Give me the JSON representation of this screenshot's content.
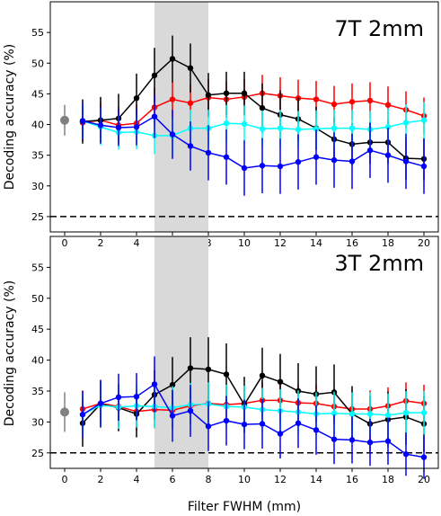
{
  "figure": {
    "xlabel": "Filter FWHM (mm)",
    "ylabel": "Decoding accuracy (%)"
  },
  "chart_data": [
    {
      "type": "line",
      "title": "7T 2mm",
      "xlabel": "Filter FWHM (mm)",
      "ylabel": "Decoding accuracy (%)",
      "xlim": [
        -0.8,
        20.8
      ],
      "ylim": [
        22.5,
        60
      ],
      "xticks": [
        0,
        2,
        4,
        6,
        8,
        10,
        12,
        14,
        16,
        18,
        20
      ],
      "yticks": [
        25,
        30,
        35,
        40,
        45,
        50,
        55
      ],
      "chance_level": 25,
      "highlight_x": [
        5,
        8
      ],
      "baseline": {
        "x": 0,
        "y": 40.7,
        "err": 2.5,
        "color": "#808080"
      },
      "x": [
        1,
        2,
        3,
        4,
        5,
        6,
        7,
        8,
        9,
        10,
        11,
        12,
        13,
        14,
        15,
        16,
        17,
        18,
        19,
        20
      ],
      "series": [
        {
          "color": "#ff0000",
          "values": [
            40.3,
            40.7,
            39.9,
            40.2,
            42.8,
            44.1,
            43.5,
            44.4,
            44.1,
            44.5,
            45.1,
            44.7,
            44.3,
            44.1,
            43.3,
            43.7,
            43.9,
            43.2,
            42.4,
            41.4
          ],
          "errors": [
            3.0,
            3.0,
            3.0,
            3.0,
            3.2,
            3.0,
            3.0,
            3.0,
            3.0,
            3.0,
            3.0,
            3.0,
            3.0,
            3.0,
            3.0,
            3.0,
            3.0,
            3.0,
            3.0,
            3.0
          ]
        },
        {
          "color": "#000000",
          "values": [
            40.5,
            40.7,
            41.0,
            44.3,
            48.0,
            50.7,
            49.2,
            44.8,
            45.1,
            45.1,
            42.7,
            41.6,
            40.9,
            39.4,
            37.6,
            36.8,
            37.1,
            37.1,
            34.5,
            34.4
          ],
          "errors": [
            3.6,
            3.8,
            4.0,
            4.0,
            4.5,
            3.8,
            4.0,
            3.6,
            3.5,
            3.5,
            4.0,
            4.0,
            3.5,
            3.5,
            3.5,
            3.5,
            3.5,
            3.5,
            3.5,
            3.5
          ]
        },
        {
          "color": "#00ffff",
          "values": [
            40.6,
            39.6,
            38.7,
            38.8,
            38.2,
            38.2,
            39.4,
            39.4,
            40.2,
            40.1,
            39.3,
            39.4,
            39.2,
            39.3,
            39.4,
            39.4,
            39.2,
            39.6,
            40.3,
            40.7
          ],
          "errors": [
            3.0,
            3.0,
            2.8,
            2.8,
            3.0,
            3.0,
            3.0,
            3.0,
            3.0,
            3.0,
            3.0,
            3.0,
            3.0,
            3.0,
            3.0,
            3.0,
            3.0,
            3.0,
            3.0,
            3.0
          ]
        },
        {
          "color": "#0000ff",
          "values": [
            40.6,
            39.9,
            39.5,
            39.6,
            41.3,
            38.4,
            36.5,
            35.4,
            34.7,
            32.9,
            33.3,
            33.2,
            33.9,
            34.7,
            34.2,
            34.0,
            35.8,
            35.0,
            34.0,
            33.2
          ],
          "errors": [
            3.0,
            3.0,
            3.0,
            3.0,
            3.5,
            4.0,
            4.0,
            4.5,
            4.5,
            4.5,
            4.5,
            4.5,
            4.5,
            4.5,
            4.5,
            4.5,
            4.5,
            4.5,
            4.5,
            4.5
          ]
        }
      ]
    },
    {
      "type": "line",
      "title": "3T 2mm",
      "xlabel": "Filter FWHM (mm)",
      "ylabel": "Decoding accuracy (%)",
      "xlim": [
        -0.8,
        20.8
      ],
      "ylim": [
        22.5,
        60
      ],
      "xticks": [
        0,
        2,
        4,
        6,
        8,
        10,
        12,
        14,
        16,
        18,
        20
      ],
      "yticks": [
        25,
        30,
        35,
        40,
        45,
        50,
        55
      ],
      "chance_level": 25,
      "highlight_x": [
        5,
        8
      ],
      "baseline": {
        "x": 0,
        "y": 31.6,
        "err": 3.2,
        "color": "#808080"
      },
      "x": [
        1,
        2,
        3,
        4,
        5,
        6,
        7,
        8,
        9,
        10,
        11,
        12,
        13,
        14,
        15,
        16,
        17,
        18,
        19,
        20
      ],
      "series": [
        {
          "color": "#ff0000",
          "values": [
            32.1,
            33.0,
            32.5,
            31.7,
            32.0,
            31.9,
            32.6,
            33.0,
            32.8,
            33.0,
            33.5,
            33.5,
            33.1,
            33.0,
            32.5,
            32.1,
            32.1,
            32.6,
            33.4,
            33.0
          ],
          "errors": [
            3.0,
            3.0,
            3.0,
            3.0,
            3.0,
            3.0,
            3.0,
            3.0,
            3.0,
            3.0,
            3.0,
            3.0,
            3.0,
            3.0,
            3.0,
            3.0,
            3.0,
            3.0,
            3.0,
            3.0
          ]
        },
        {
          "color": "#000000",
          "values": [
            29.8,
            32.9,
            32.3,
            31.3,
            34.4,
            36.0,
            38.7,
            38.5,
            37.7,
            32.8,
            37.5,
            36.5,
            35.0,
            34.5,
            34.8,
            31.3,
            29.7,
            30.4,
            30.8,
            29.7
          ],
          "errors": [
            3.8,
            3.8,
            3.8,
            3.8,
            4.0,
            4.5,
            5.0,
            5.2,
            5.0,
            4.5,
            4.5,
            4.5,
            4.5,
            4.5,
            4.5,
            4.5,
            4.5,
            4.5,
            4.5,
            4.5
          ]
        },
        {
          "color": "#00ffff",
          "values": [
            31.2,
            32.7,
            32.4,
            32.6,
            32.5,
            32.3,
            32.8,
            32.9,
            32.5,
            32.4,
            32.0,
            31.8,
            31.6,
            31.3,
            31.4,
            31.3,
            31.3,
            31.1,
            31.5,
            31.5
          ],
          "errors": [
            3.5,
            3.5,
            3.5,
            3.5,
            3.5,
            3.5,
            3.5,
            3.5,
            3.5,
            3.5,
            3.5,
            3.5,
            3.5,
            3.5,
            3.5,
            3.5,
            3.5,
            3.5,
            3.5,
            3.5
          ]
        },
        {
          "color": "#0000ff",
          "values": [
            31.2,
            33.0,
            34.0,
            34.1,
            36.1,
            31.0,
            31.8,
            29.3,
            30.2,
            29.6,
            29.7,
            28.1,
            29.8,
            28.7,
            27.2,
            27.1,
            26.7,
            26.9,
            24.8,
            24.3
          ],
          "errors": [
            3.8,
            3.8,
            3.8,
            3.8,
            4.5,
            4.2,
            4.2,
            4.0,
            4.0,
            4.0,
            4.0,
            4.0,
            4.0,
            4.0,
            4.0,
            3.8,
            3.8,
            3.8,
            3.5,
            3.5
          ]
        }
      ]
    }
  ]
}
